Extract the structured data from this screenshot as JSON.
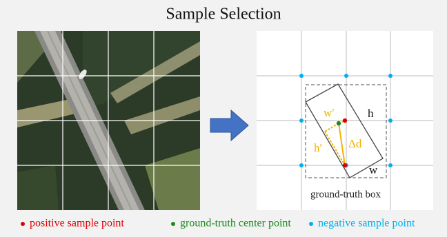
{
  "header": {
    "title": "Sample Selection"
  },
  "diagram": {
    "h": "h",
    "w": "w",
    "w_prime": "w′",
    "h_prime": "h′",
    "delta_d": "Δd",
    "box_label": "ground-truth box"
  },
  "legend": {
    "positive": "positive sample point",
    "center": "ground-truth center point",
    "negative": "negative sample point"
  }
}
